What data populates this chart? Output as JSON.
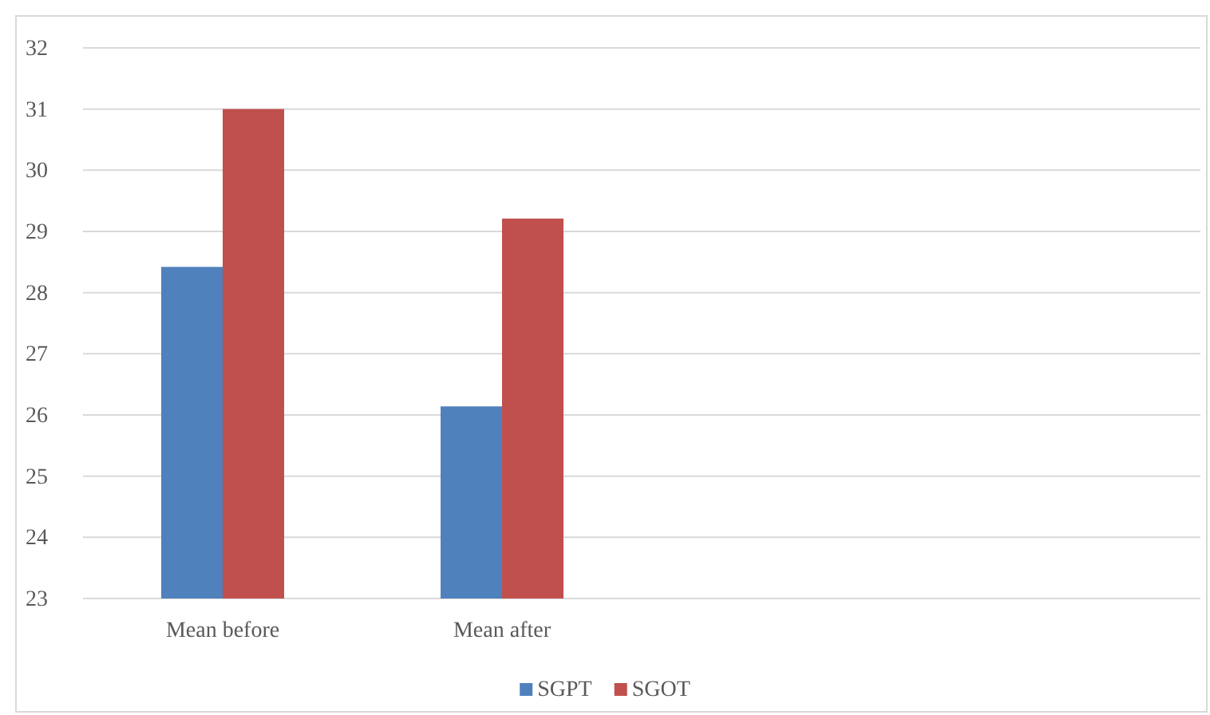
{
  "chart_data": {
    "type": "bar",
    "categories": [
      "Mean before",
      "Mean after",
      null,
      null
    ],
    "series": [
      {
        "name": "SGPT",
        "color": "#4f81bd",
        "values": [
          28.42,
          26.14,
          null,
          null
        ]
      },
      {
        "name": "SGOT",
        "color": "#c0504d",
        "values": [
          31.0,
          29.21,
          null,
          null
        ]
      }
    ],
    "ylim": [
      23,
      32
    ],
    "yticks": [
      23,
      24,
      25,
      26,
      27,
      28,
      29,
      30,
      31,
      32
    ],
    "grid": "y",
    "legend": "bottom"
  }
}
